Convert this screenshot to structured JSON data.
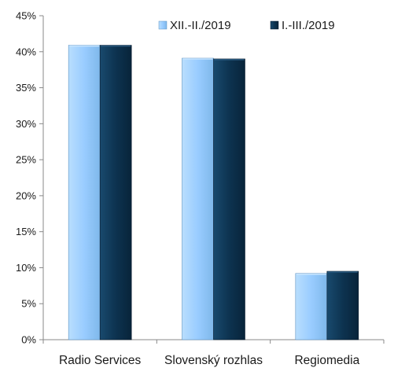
{
  "chart_data": {
    "type": "bar",
    "categories": [
      "Radio Services",
      "Slovenský rozhlas",
      "Regiomedia"
    ],
    "series": [
      {
        "name": "XII.-II./2019",
        "values": [
          40.9,
          39.1,
          9.2
        ]
      },
      {
        "name": "I.-III./2019",
        "values": [
          40.9,
          39.0,
          9.5
        ]
      }
    ],
    "yticks": [
      "0%",
      "5%",
      "10%",
      "15%",
      "20%",
      "25%",
      "30%",
      "35%",
      "40%",
      "45%"
    ],
    "ylim": [
      0,
      45
    ],
    "legend_position": "top-right",
    "grid": false,
    "colors": {
      "series_1": "#99ccff",
      "series_2": "#0d3350",
      "axis": "#888888",
      "text": "#1a1a1a"
    }
  }
}
